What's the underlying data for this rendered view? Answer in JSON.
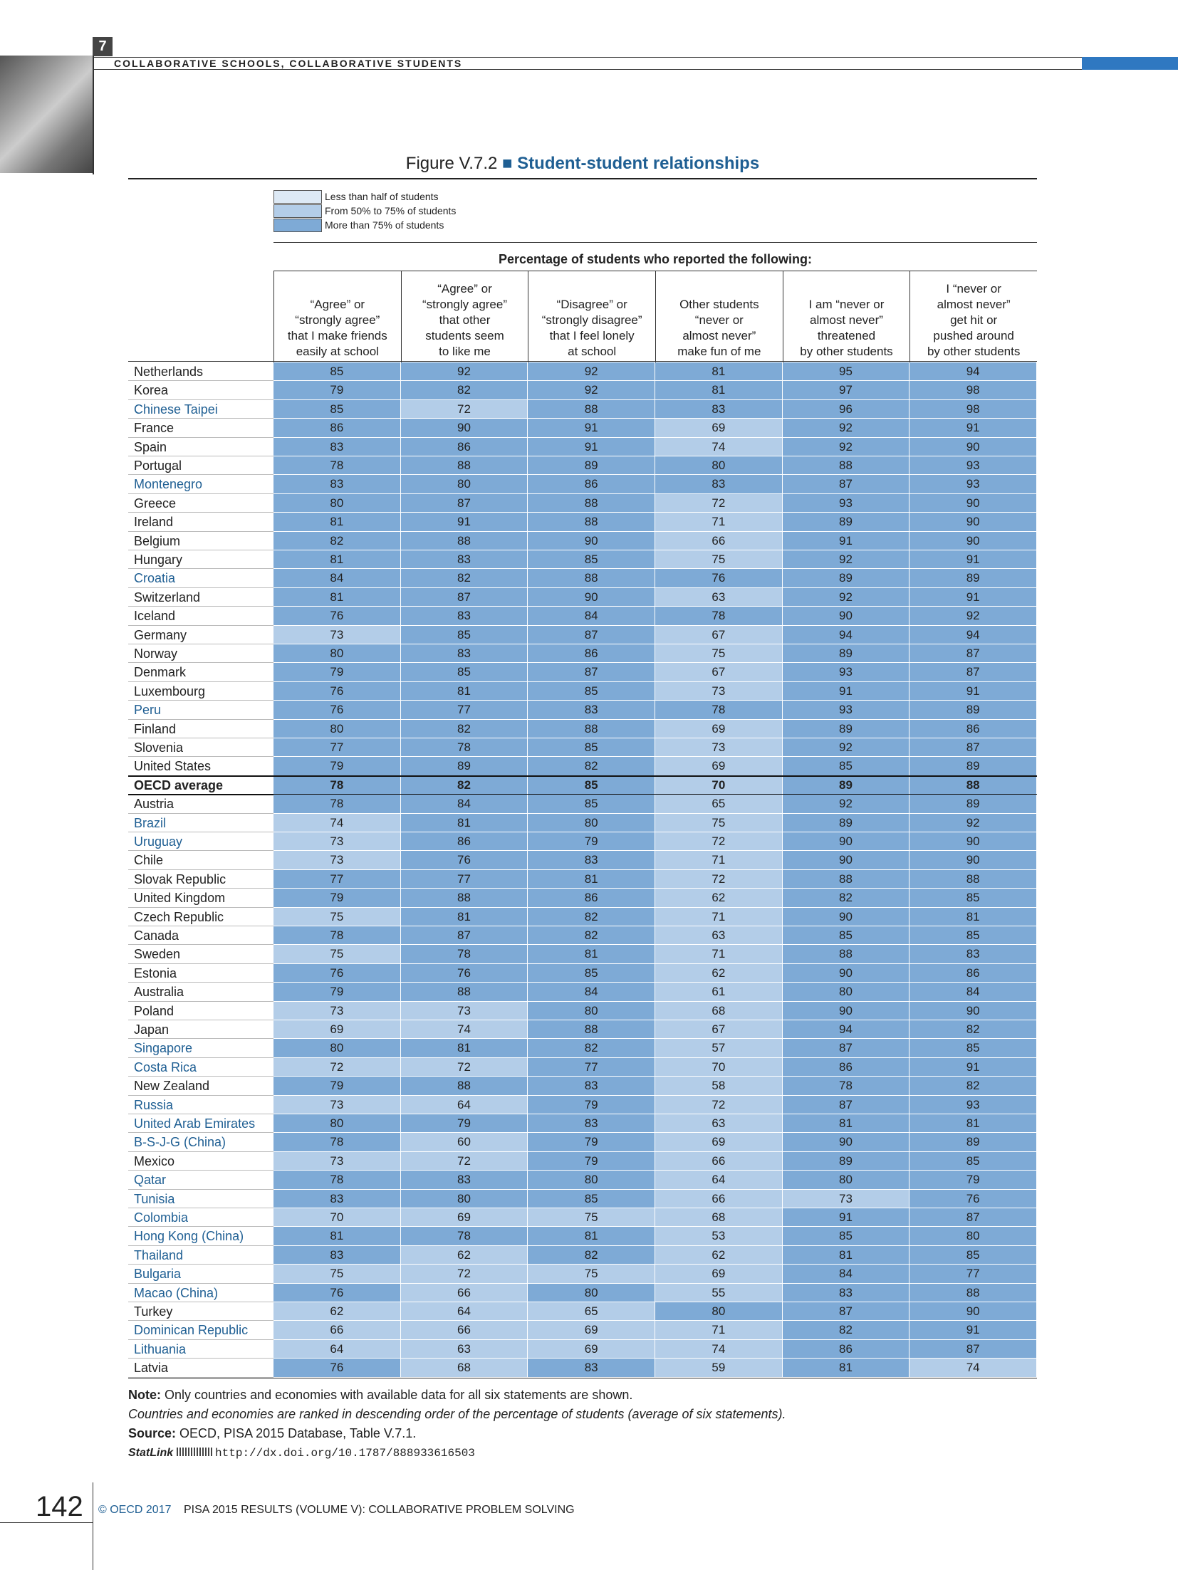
{
  "header": {
    "chapter": "7",
    "running_title": "COLLABORATIVE SCHOOLS, COLLABORATIVE STUDENTS"
  },
  "figure": {
    "number": "Figure V.7.2",
    "title": "Student-student relationships"
  },
  "legend": [
    {
      "label": "Less than half of students",
      "color": "#dde9f5",
      "range": [
        0,
        50
      ]
    },
    {
      "label": "From 50% to 75% of students",
      "color": "#b3cde8",
      "range": [
        50,
        75
      ]
    },
    {
      "label": "More than 75% of students",
      "color": "#7eaad6",
      "range": [
        75,
        100
      ]
    }
  ],
  "table": {
    "group_header": "Percentage of students who reported the following:",
    "columns": [
      "“Agree” or\n“strongly agree”\nthat I make friends\neasily at school",
      "“Agree” or\n“strongly agree”\nthat other\nstudents seem\nto like me",
      "“Disagree” or\n“strongly disagree”\nthat I feel lonely\nat school",
      "Other students\n“never or\nalmost never”\nmake fun of me",
      "I am “never or\nalmost never”\nthreatened\nby other students",
      "I “never or\nalmost never”\nget hit or\npushed around\nby other students"
    ],
    "rows": [
      {
        "name": "Netherlands",
        "values": [
          85,
          92,
          92,
          81,
          95,
          94
        ]
      },
      {
        "name": "Korea",
        "values": [
          79,
          82,
          92,
          81,
          97,
          98
        ]
      },
      {
        "name": "Chinese Taipei",
        "values": [
          85,
          72,
          88,
          83,
          96,
          98
        ],
        "name_color": "#1f5f93"
      },
      {
        "name": "France",
        "values": [
          86,
          90,
          91,
          69,
          92,
          91
        ]
      },
      {
        "name": "Spain",
        "values": [
          83,
          86,
          91,
          74,
          92,
          90
        ]
      },
      {
        "name": "Portugal",
        "values": [
          78,
          88,
          89,
          80,
          88,
          93
        ]
      },
      {
        "name": "Montenegro",
        "values": [
          83,
          80,
          86,
          83,
          87,
          93
        ],
        "name_color": "#1f5f93"
      },
      {
        "name": "Greece",
        "values": [
          80,
          87,
          88,
          72,
          93,
          90
        ]
      },
      {
        "name": "Ireland",
        "values": [
          81,
          91,
          88,
          71,
          89,
          90
        ]
      },
      {
        "name": "Belgium",
        "values": [
          82,
          88,
          90,
          66,
          91,
          90
        ]
      },
      {
        "name": "Hungary",
        "values": [
          81,
          83,
          85,
          75,
          92,
          91
        ]
      },
      {
        "name": "Croatia",
        "values": [
          84,
          82,
          88,
          76,
          89,
          89
        ],
        "name_color": "#1f5f93"
      },
      {
        "name": "Switzerland",
        "values": [
          81,
          87,
          90,
          63,
          92,
          91
        ]
      },
      {
        "name": "Iceland",
        "values": [
          76,
          83,
          84,
          78,
          90,
          92
        ]
      },
      {
        "name": "Germany",
        "values": [
          73,
          85,
          87,
          67,
          94,
          94
        ]
      },
      {
        "name": "Norway",
        "values": [
          80,
          83,
          86,
          75,
          89,
          87
        ]
      },
      {
        "name": "Denmark",
        "values": [
          79,
          85,
          87,
          67,
          93,
          87
        ]
      },
      {
        "name": "Luxembourg",
        "values": [
          76,
          81,
          85,
          73,
          91,
          91
        ]
      },
      {
        "name": "Peru",
        "values": [
          76,
          77,
          83,
          78,
          93,
          89
        ],
        "name_color": "#1f5f93"
      },
      {
        "name": "Finland",
        "values": [
          80,
          82,
          88,
          69,
          89,
          86
        ]
      },
      {
        "name": "Slovenia",
        "values": [
          77,
          78,
          85,
          73,
          92,
          87
        ]
      },
      {
        "name": "United States",
        "values": [
          79,
          89,
          82,
          69,
          85,
          89
        ]
      },
      {
        "name": "OECD average",
        "values": [
          78,
          82,
          85,
          70,
          89,
          88
        ],
        "bold": true
      },
      {
        "name": "Austria",
        "values": [
          78,
          84,
          85,
          65,
          92,
          89
        ]
      },
      {
        "name": "Brazil",
        "values": [
          74,
          81,
          80,
          75,
          89,
          92
        ],
        "name_color": "#1f5f93"
      },
      {
        "name": "Uruguay",
        "values": [
          73,
          86,
          79,
          72,
          90,
          90
        ],
        "name_color": "#1f5f93"
      },
      {
        "name": "Chile",
        "values": [
          73,
          76,
          83,
          71,
          90,
          90
        ]
      },
      {
        "name": "Slovak Republic",
        "values": [
          77,
          77,
          81,
          72,
          88,
          88
        ]
      },
      {
        "name": "United Kingdom",
        "values": [
          79,
          88,
          86,
          62,
          82,
          85
        ]
      },
      {
        "name": "Czech Republic",
        "values": [
          75,
          81,
          82,
          71,
          90,
          81
        ]
      },
      {
        "name": "Canada",
        "values": [
          78,
          87,
          82,
          63,
          85,
          85
        ]
      },
      {
        "name": "Sweden",
        "values": [
          75,
          78,
          81,
          71,
          88,
          83
        ]
      },
      {
        "name": "Estonia",
        "values": [
          76,
          76,
          85,
          62,
          90,
          86
        ]
      },
      {
        "name": "Australia",
        "values": [
          79,
          88,
          84,
          61,
          80,
          84
        ]
      },
      {
        "name": "Poland",
        "values": [
          73,
          73,
          80,
          68,
          90,
          90
        ]
      },
      {
        "name": "Japan",
        "values": [
          69,
          74,
          88,
          67,
          94,
          82
        ]
      },
      {
        "name": "Singapore",
        "values": [
          80,
          81,
          82,
          57,
          87,
          85
        ],
        "name_color": "#1f5f93"
      },
      {
        "name": "Costa Rica",
        "values": [
          72,
          72,
          77,
          70,
          86,
          91
        ],
        "name_color": "#1f5f93"
      },
      {
        "name": "New Zealand",
        "values": [
          79,
          88,
          83,
          58,
          78,
          82
        ]
      },
      {
        "name": "Russia",
        "values": [
          73,
          64,
          79,
          72,
          87,
          93
        ],
        "name_color": "#1f5f93"
      },
      {
        "name": "United Arab Emirates",
        "values": [
          80,
          79,
          83,
          63,
          81,
          81
        ],
        "name_color": "#1f5f93"
      },
      {
        "name": "B-S-J-G (China)",
        "values": [
          78,
          60,
          79,
          69,
          90,
          89
        ],
        "name_color": "#1f5f93"
      },
      {
        "name": "Mexico",
        "values": [
          73,
          72,
          79,
          66,
          89,
          85
        ]
      },
      {
        "name": "Qatar",
        "values": [
          78,
          83,
          80,
          64,
          80,
          79
        ],
        "name_color": "#1f5f93"
      },
      {
        "name": "Tunisia",
        "values": [
          83,
          80,
          85,
          66,
          73,
          76
        ],
        "name_color": "#1f5f93"
      },
      {
        "name": "Colombia",
        "values": [
          70,
          69,
          75,
          68,
          91,
          87
        ],
        "name_color": "#1f5f93"
      },
      {
        "name": "Hong Kong (China)",
        "values": [
          81,
          78,
          81,
          53,
          85,
          80
        ],
        "name_color": "#1f5f93"
      },
      {
        "name": "Thailand",
        "values": [
          83,
          62,
          82,
          62,
          81,
          85
        ],
        "name_color": "#1f5f93"
      },
      {
        "name": "Bulgaria",
        "values": [
          75,
          72,
          75,
          69,
          84,
          77
        ],
        "name_color": "#1f5f93"
      },
      {
        "name": "Macao (China)",
        "values": [
          76,
          66,
          80,
          55,
          83,
          88
        ],
        "name_color": "#1f5f93"
      },
      {
        "name": "Turkey",
        "values": [
          62,
          64,
          65,
          80,
          87,
          90
        ]
      },
      {
        "name": "Dominican Republic",
        "values": [
          66,
          66,
          69,
          71,
          82,
          91
        ],
        "name_color": "#1f5f93"
      },
      {
        "name": "Lithuania",
        "values": [
          64,
          63,
          69,
          74,
          86,
          87
        ],
        "name_color": "#1f5f93"
      },
      {
        "name": "Latvia",
        "values": [
          76,
          68,
          83,
          59,
          81,
          74
        ]
      }
    ]
  },
  "notes": {
    "note_label": "Note:",
    "note": "Only countries and economies with available data for all six statements are shown.",
    "ranking": "Countries and economies are ranked in descending order of the percentage of students (average of six statements).",
    "source_label": "Source:",
    "source": "OECD, PISA 2015 Database, Table V.7.1.",
    "statlink_label": "StatLink",
    "statlink": "http://dx.doi.org/10.1787/888933616503"
  },
  "footer": {
    "page": "142",
    "copyright": "© OECD 2017",
    "publication": "PISA 2015 RESULTS (VOLUME V): COLLABORATIVE PROBLEM SOLVING"
  }
}
